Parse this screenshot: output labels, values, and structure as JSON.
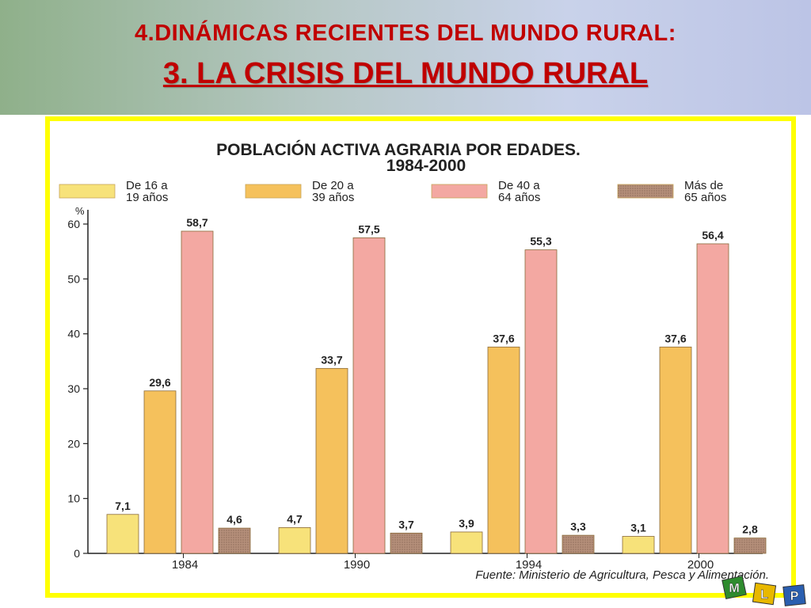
{
  "slide": {
    "title_line1": "4.DINÁMICAS RECIENTES DEL MUNDO RURAL:",
    "title_line2": "3.  LA CRISIS DEL MUNDO RURAL"
  },
  "logo": {
    "letters": [
      "M",
      "L",
      "P"
    ],
    "colors": [
      "#2e8b2e",
      "#e8b800",
      "#2a5fb0"
    ]
  },
  "chart_data": {
    "type": "bar",
    "title": "POBLACIÓN ACTIVA AGRARIA POR EDADES.",
    "subtitle": "1984-2000",
    "ylabel": "%",
    "xlabel": "",
    "ylim": [
      0,
      60
    ],
    "yticks": [
      0,
      10,
      20,
      30,
      40,
      50,
      60
    ],
    "categories": [
      "1984",
      "1990",
      "1994",
      "2000"
    ],
    "legend_position": "top",
    "series": [
      {
        "name_line1": "De 16 a",
        "name_line2": "19 años",
        "color": "#f7e27a",
        "values": [
          7.1,
          4.7,
          3.9,
          3.1
        ],
        "labels": [
          "7,1",
          "4,7",
          "3,9",
          "3,1"
        ]
      },
      {
        "name_line1": "De 20 a",
        "name_line2": "39 años",
        "color": "#f5c15c",
        "values": [
          29.6,
          33.7,
          37.6,
          37.6
        ],
        "labels": [
          "29,6",
          "33,7",
          "37,6",
          "37,6"
        ]
      },
      {
        "name_line1": "De 40 a",
        "name_line2": "64 años",
        "color": "#f3a8a2",
        "values": [
          58.7,
          57.5,
          55.3,
          56.4
        ],
        "labels": [
          "58,7",
          "57,5",
          "55,3",
          "56,4"
        ]
      },
      {
        "name_line1": "Más de",
        "name_line2": "65 años",
        "color": "#b58f7a",
        "values": [
          4.6,
          3.7,
          3.3,
          2.8
        ],
        "labels": [
          "4,6",
          "3,7",
          "3,3",
          "2,8"
        ]
      }
    ],
    "source": "Fuente: Ministerio de Agricultura, Pesca y Alimentación."
  }
}
